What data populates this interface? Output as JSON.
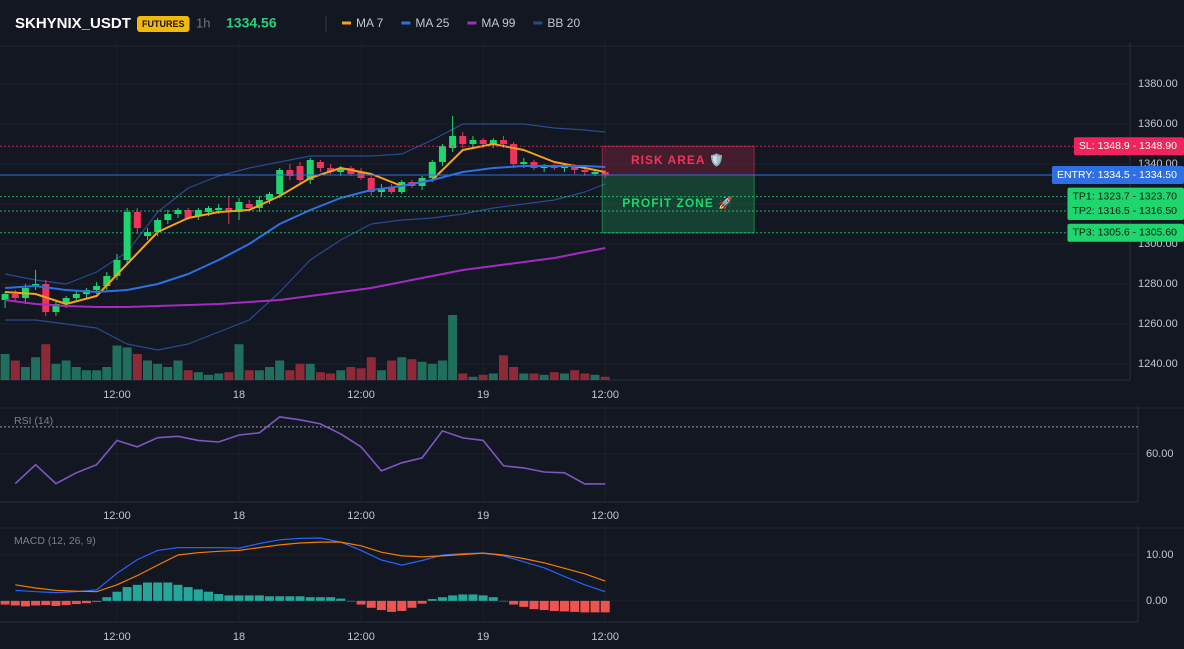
{
  "header": {
    "symbol": "SKHYNIX_USDT",
    "badge": "FUTURES",
    "interval": "1h",
    "price": 1334.56
  },
  "chart_data": [
    {
      "type": "candlestick",
      "x": [
        1,
        2,
        3,
        4,
        5,
        6,
        7,
        8,
        9,
        10,
        11,
        12,
        13,
        14,
        15,
        16,
        17,
        18,
        19,
        20,
        21,
        22,
        23,
        24,
        25,
        26,
        27,
        28,
        29,
        30,
        31,
        32,
        33,
        34,
        35,
        36,
        37,
        38,
        39,
        40,
        41,
        42,
        43,
        44,
        45,
        46,
        47,
        48,
        49,
        50,
        51,
        52,
        53,
        54,
        55,
        56,
        57,
        58,
        59,
        60
      ],
      "candles": [
        [
          1272,
          1276,
          1268,
          1275
        ],
        [
          1275,
          1277,
          1271,
          1273
        ],
        [
          1273,
          1280,
          1270,
          1278
        ],
        [
          1279,
          1287,
          1277,
          1280
        ],
        [
          1280,
          1282,
          1264,
          1266
        ],
        [
          1266,
          1271,
          1264,
          1270
        ],
        [
          1270,
          1274,
          1268,
          1273
        ],
        [
          1273,
          1277,
          1271,
          1275
        ],
        [
          1275,
          1278,
          1273,
          1277
        ],
        [
          1277,
          1281,
          1275,
          1279
        ],
        [
          1279,
          1286,
          1277,
          1284
        ],
        [
          1284,
          1295,
          1282,
          1292
        ],
        [
          1292,
          1318,
          1290,
          1316
        ],
        [
          1316,
          1318,
          1305,
          1308
        ],
        [
          1304,
          1308,
          1302,
          1306
        ],
        [
          1306,
          1313,
          1304,
          1312
        ],
        [
          1312,
          1317,
          1310,
          1315
        ],
        [
          1315,
          1318,
          1313,
          1317
        ],
        [
          1317,
          1318,
          1312,
          1313
        ],
        [
          1314,
          1318,
          1312,
          1317
        ],
        [
          1316,
          1319,
          1314,
          1318
        ],
        [
          1317,
          1320,
          1315,
          1318
        ],
        [
          1318,
          1324,
          1310,
          1316
        ],
        [
          1316,
          1323,
          1312,
          1321
        ],
        [
          1320,
          1322,
          1317,
          1318
        ],
        [
          1318,
          1324,
          1316,
          1322
        ],
        [
          1322,
          1326,
          1320,
          1325
        ],
        [
          1325,
          1338,
          1323,
          1337
        ],
        [
          1337,
          1340,
          1332,
          1334
        ],
        [
          1339,
          1341,
          1330,
          1332
        ],
        [
          1332,
          1343,
          1330,
          1342
        ],
        [
          1341,
          1342,
          1336,
          1338
        ],
        [
          1338,
          1340,
          1335,
          1336
        ],
        [
          1336,
          1339,
          1334,
          1338
        ],
        [
          1338,
          1339,
          1334,
          1335
        ],
        [
          1336,
          1338,
          1332,
          1333
        ],
        [
          1333,
          1335,
          1324,
          1326
        ],
        [
          1326,
          1330,
          1324,
          1328
        ],
        [
          1328,
          1330,
          1325,
          1326
        ],
        [
          1326,
          1332,
          1325,
          1331
        ],
        [
          1331,
          1332,
          1328,
          1329
        ],
        [
          1329,
          1334,
          1327,
          1333
        ],
        [
          1333,
          1342,
          1331,
          1341
        ],
        [
          1341,
          1350,
          1339,
          1349
        ],
        [
          1348,
          1364,
          1346,
          1354
        ],
        [
          1354,
          1356,
          1348,
          1350
        ],
        [
          1350,
          1354,
          1348,
          1352
        ],
        [
          1352,
          1353,
          1348,
          1350
        ],
        [
          1350,
          1353,
          1348,
          1352
        ],
        [
          1352,
          1354,
          1348,
          1350
        ],
        [
          1350,
          1351,
          1338,
          1340
        ],
        [
          1340,
          1343,
          1338,
          1341
        ],
        [
          1341,
          1342,
          1337,
          1338
        ],
        [
          1338,
          1340,
          1336,
          1339
        ],
        [
          1339,
          1340,
          1337,
          1338
        ],
        [
          1338,
          1340,
          1336,
          1339
        ],
        [
          1339,
          1340,
          1335,
          1337
        ],
        [
          1337,
          1338,
          1334,
          1336
        ],
        [
          1335,
          1337,
          1334,
          1336
        ],
        [
          1336,
          1337,
          1333,
          1334.56
        ]
      ],
      "volume": [
        40,
        30,
        20,
        35,
        55,
        25,
        30,
        20,
        15,
        15,
        20,
        53,
        50,
        40,
        30,
        25,
        20,
        30,
        15,
        12,
        8,
        10,
        12,
        55,
        15,
        15,
        20,
        30,
        15,
        25,
        25,
        12,
        10,
        15,
        20,
        18,
        35,
        15,
        30,
        35,
        32,
        28,
        25,
        30,
        100,
        10,
        5,
        8,
        10,
        38,
        20,
        10,
        10,
        8,
        12,
        10,
        15,
        10,
        8,
        5
      ],
      "vol_ylim": [
        0,
        100
      ],
      "up_color": "#1fd66e",
      "down_color": "#f0335a",
      "vol_up_color": "#1f6f5c",
      "vol_down_color": "#8e2a38",
      "overlay_x": [
        1,
        4,
        7,
        10,
        13,
        16,
        19,
        22,
        25,
        28,
        31,
        34,
        37,
        40,
        43,
        46,
        49,
        52,
        55,
        58,
        60
      ],
      "overlays": [
        {
          "name": "MA 7",
          "color": "#f7a21b",
          "values": [
            1276,
            1275,
            1270,
            1274,
            1290,
            1306,
            1313,
            1316,
            1317,
            1324,
            1333,
            1338,
            1335,
            1329,
            1332,
            1347,
            1350,
            1347,
            1341,
            1338,
            1336
          ]
        },
        {
          "name": "MA 25",
          "color": "#2f6fe4",
          "values": [
            1278,
            1279,
            1277,
            1276,
            1277,
            1280,
            1285,
            1292,
            1300,
            1310,
            1317,
            1323,
            1327,
            1329,
            1332,
            1336,
            1338,
            1339,
            1339,
            1339,
            1338.5
          ]
        },
        {
          "name": "MA 99",
          "color": "#a32bc0",
          "values": [
            1272,
            1270,
            1269,
            1268.5,
            1268.5,
            1269,
            1269.5,
            1270,
            1271,
            1272,
            1274,
            1276,
            1278,
            1281,
            1284,
            1287,
            1289,
            1291,
            1293,
            1296,
            1298
          ]
        },
        {
          "name": "BB 20",
          "color": "#2a4a8f",
          "upper": [
            1285,
            1282,
            1280,
            1286,
            1296,
            1316,
            1328,
            1334,
            1338,
            1341,
            1344,
            1344,
            1344,
            1345,
            1352,
            1360,
            1360,
            1360,
            1358,
            1357,
            1356
          ],
          "lower": [
            1262,
            1262,
            1260,
            1258,
            1250,
            1247,
            1250,
            1256,
            1262,
            1276,
            1292,
            1302,
            1310,
            1312,
            1313,
            1315,
            1318,
            1320,
            1322,
            1326,
            1330
          ]
        }
      ],
      "levels": [
        {
          "label": "SL: 1348.9 - 1348.90",
          "value": 1348.9,
          "color": "#f0245c",
          "text_color": "#ffffff",
          "dashed": true
        },
        {
          "label": "ENTRY: 1334.5 - 1334.50",
          "value": 1334.5,
          "color": "#2f6fe4",
          "text_color": "#ffffff",
          "dashed": false
        },
        {
          "label": "TP1: 1323.7 - 1323.70",
          "value": 1323.7,
          "color": "#1fd66e",
          "text_color": "#0b1a10",
          "dashed": true
        },
        {
          "label": "TP2: 1316.5 - 1316.50",
          "value": 1316.5,
          "color": "#1fd66e",
          "text_color": "#0b1a10",
          "dashed": true
        },
        {
          "label": "TP3: 1305.6 - 1305.60",
          "value": 1305.6,
          "color": "#1fd66e",
          "text_color": "#0b1a10",
          "dashed": true
        }
      ],
      "zones": [
        {
          "label": "RISK AREA 🛡️",
          "from": 1334.5,
          "to": 1348.9,
          "color": "#f0335a"
        },
        {
          "label": "PROFIT ZONE 🚀",
          "from": 1334.5,
          "to": 1305.6,
          "color": "#1fd66e"
        }
      ],
      "xlim": [
        0.5,
        111.6
      ],
      "xticks": [
        {
          "value": 12,
          "label": "12:00"
        },
        {
          "value": 24,
          "label": "18"
        },
        {
          "value": 36,
          "label": "12:00"
        },
        {
          "value": 48,
          "label": "19"
        },
        {
          "value": 60,
          "label": "12:00"
        }
      ],
      "ylim": [
        1232,
        1398
      ],
      "yticks": [
        {
          "value": 1240,
          "label": "1240.00"
        },
        {
          "value": 1260,
          "label": "1260.00"
        },
        {
          "value": 1280,
          "label": "1280.00"
        },
        {
          "value": 1300,
          "label": "1300.00"
        },
        {
          "value": 1320,
          "label": "1320.00"
        },
        {
          "value": 1340,
          "label": "1340.00"
        },
        {
          "value": 1360,
          "label": "1360.00"
        },
        {
          "value": 1380,
          "label": "1380.00"
        }
      ]
    },
    {
      "type": "line",
      "title": "RSI (14)",
      "color": "#7e57c2",
      "x": [
        2,
        4,
        6,
        8,
        10,
        12,
        14,
        16,
        18,
        20,
        22,
        24,
        26,
        28,
        30,
        32,
        34,
        36,
        38,
        40,
        42,
        44,
        46,
        48,
        50,
        52,
        54,
        56,
        58,
        60
      ],
      "values": [
        49,
        56,
        49,
        53,
        56,
        65,
        62.6,
        66,
        66.5,
        65,
        64.4,
        67,
        67.8,
        73.7,
        72.6,
        71.1,
        67.4,
        62.6,
        53.7,
        56.7,
        58.5,
        68.5,
        65.9,
        65,
        55.6,
        54.8,
        53.3,
        53,
        48.9,
        48.9
      ],
      "overbought": 70,
      "xlim": [
        0.5,
        111.6
      ],
      "xticks": [
        {
          "value": 12,
          "label": "12:00"
        },
        {
          "value": 24,
          "label": "18"
        },
        {
          "value": 36,
          "label": "12:00"
        },
        {
          "value": 48,
          "label": "19"
        },
        {
          "value": 60,
          "label": "12:00"
        }
      ],
      "ylim": [
        42.2,
        75.5
      ],
      "yticks": [
        {
          "value": 60,
          "label": "60.00"
        }
      ]
    },
    {
      "type": "macd",
      "title": "MACD (12, 26, 9)",
      "x": [
        2,
        4,
        6,
        8,
        10,
        12,
        14,
        16,
        18,
        20,
        22,
        24,
        26,
        28,
        30,
        32,
        34,
        36,
        38,
        40,
        42,
        44,
        46,
        48,
        50,
        52,
        54,
        56,
        58,
        60
      ],
      "series": [
        {
          "color": "#2962ff",
          "values": [
            2.3,
            2,
            1.8,
            2,
            2.4,
            6,
            9,
            11,
            11.6,
            11.6,
            11.6,
            11.5,
            12.5,
            13.3,
            13.6,
            13.7,
            12.8,
            11,
            8.9,
            7.8,
            8.8,
            10,
            10.3,
            10.4,
            9.8,
            8.5,
            7.2,
            5.3,
            3.5,
            2
          ]
        },
        {
          "color": "#f57c00",
          "values": [
            3.5,
            2.8,
            2.3,
            2.1,
            2,
            3.5,
            5.5,
            7.8,
            10,
            10.5,
            10.8,
            11,
            11.6,
            12.2,
            12.6,
            12.8,
            12.8,
            12,
            10.6,
            9.8,
            9.6,
            9.8,
            10.1,
            10.4,
            10,
            9.2,
            8.3,
            7.1,
            5.9,
            4.3
          ]
        }
      ],
      "histogram": {
        "x": [
          1,
          2,
          3,
          4,
          5,
          6,
          7,
          8,
          9,
          10,
          11,
          12,
          13,
          14,
          15,
          16,
          17,
          18,
          19,
          20,
          21,
          22,
          23,
          24,
          25,
          26,
          27,
          28,
          29,
          30,
          31,
          32,
          33,
          34,
          35,
          36,
          37,
          38,
          39,
          40,
          41,
          42,
          43,
          44,
          45,
          46,
          47,
          48,
          49,
          50,
          51,
          52,
          53,
          54,
          55,
          56,
          57,
          58,
          59,
          60
        ],
        "values": [
          -0.8,
          -1,
          -1.2,
          -1,
          -0.9,
          -1.1,
          -0.9,
          -0.7,
          -0.5,
          -0.2,
          0.8,
          2,
          3,
          3.5,
          4,
          4,
          4,
          3.5,
          3,
          2.5,
          2,
          1.5,
          1.2,
          1.2,
          1.2,
          1.2,
          1,
          1,
          1,
          1,
          0.8,
          0.8,
          0.8,
          0.5,
          0,
          -0.8,
          -1.5,
          -2,
          -2.4,
          -2.2,
          -1.5,
          -0.6,
          0.4,
          0.8,
          1.2,
          1.4,
          1.4,
          1.2,
          0.8,
          0,
          -0.8,
          -1.3,
          -1.8,
          -2,
          -2.2,
          -2.3,
          -2.4,
          -2.5,
          -2.5,
          -2.5
        ],
        "up_color": "#26a69a",
        "down_color": "#ef5350"
      },
      "xlim": [
        0.5,
        111.6
      ],
      "xticks": [
        {
          "value": 12,
          "label": "12:00"
        },
        {
          "value": 24,
          "label": "18"
        },
        {
          "value": 36,
          "label": "12:00"
        },
        {
          "value": 48,
          "label": "19"
        },
        {
          "value": 60,
          "label": "12:00"
        }
      ],
      "ylim": [
        -4.6,
        15
      ],
      "yticks": [
        {
          "value": 0,
          "label": "0.00"
        },
        {
          "value": 10,
          "label": "10.00"
        }
      ]
    }
  ]
}
